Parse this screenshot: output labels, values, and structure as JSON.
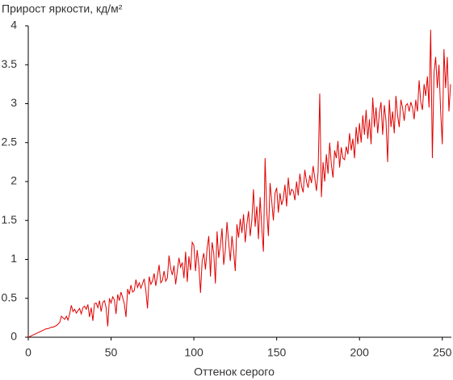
{
  "chart_data": {
    "type": "line",
    "title": "Прирост яркости, кд/м²",
    "x_label": "Оттенок серого",
    "xlim": [
      0,
      255
    ],
    "xticks": [
      0,
      50,
      100,
      150,
      200,
      250
    ],
    "ylim": [
      0,
      4
    ],
    "yticks": [
      0,
      0.5,
      1,
      1.5,
      2,
      2.5,
      3,
      3.5,
      4
    ],
    "grid": false,
    "series": [
      {
        "color": "#e00000",
        "x": [
          0,
          1,
          2,
          3,
          4,
          5,
          6,
          7,
          8,
          9,
          10,
          11,
          12,
          13,
          14,
          15,
          16,
          17,
          18,
          19,
          20,
          21,
          22,
          23,
          24,
          25,
          26,
          27,
          28,
          29,
          30,
          31,
          32,
          33,
          34,
          35,
          36,
          37,
          38,
          39,
          40,
          41,
          42,
          43,
          44,
          45,
          46,
          47,
          48,
          49,
          50,
          51,
          52,
          53,
          54,
          55,
          56,
          57,
          58,
          59,
          60,
          61,
          62,
          63,
          64,
          65,
          66,
          67,
          68,
          69,
          70,
          71,
          72,
          73,
          74,
          75,
          76,
          77,
          78,
          79,
          80,
          81,
          82,
          83,
          84,
          85,
          86,
          87,
          88,
          89,
          90,
          91,
          92,
          93,
          94,
          95,
          96,
          97,
          98,
          99,
          100,
          101,
          102,
          103,
          104,
          105,
          106,
          107,
          108,
          109,
          110,
          111,
          112,
          113,
          114,
          115,
          116,
          117,
          118,
          119,
          120,
          121,
          122,
          123,
          124,
          125,
          126,
          127,
          128,
          129,
          130,
          131,
          132,
          133,
          134,
          135,
          136,
          137,
          138,
          139,
          140,
          141,
          142,
          143,
          144,
          145,
          146,
          147,
          148,
          149,
          150,
          151,
          152,
          153,
          154,
          155,
          156,
          157,
          158,
          159,
          160,
          161,
          162,
          163,
          164,
          165,
          166,
          167,
          168,
          169,
          170,
          171,
          172,
          173,
          174,
          175,
          176,
          177,
          178,
          179,
          180,
          181,
          182,
          183,
          184,
          185,
          186,
          187,
          188,
          189,
          190,
          191,
          192,
          193,
          194,
          195,
          196,
          197,
          198,
          199,
          200,
          201,
          202,
          203,
          204,
          205,
          206,
          207,
          208,
          209,
          210,
          211,
          212,
          213,
          214,
          215,
          216,
          217,
          218,
          219,
          220,
          221,
          222,
          223,
          224,
          225,
          226,
          227,
          228,
          229,
          230,
          231,
          232,
          233,
          234,
          235,
          236,
          237,
          238,
          239,
          240,
          241,
          242,
          243,
          244,
          245,
          246,
          247,
          248,
          249,
          250,
          251,
          252,
          253,
          254,
          255
        ],
        "values": [
          0,
          0.01,
          0.02,
          0.03,
          0.04,
          0.05,
          0.06,
          0.07,
          0.08,
          0.09,
          0.1,
          0.11,
          0.11,
          0.12,
          0.13,
          0.13,
          0.14,
          0.15,
          0.17,
          0.19,
          0.27,
          0.25,
          0.23,
          0.27,
          0.22,
          0.3,
          0.41,
          0.33,
          0.36,
          0.31,
          0.34,
          0.37,
          0.3,
          0.38,
          0.4,
          0.36,
          0.42,
          0.26,
          0.38,
          0.21,
          0.43,
          0.44,
          0.38,
          0.47,
          0.33,
          0.45,
          0.47,
          0.38,
          0.14,
          0.5,
          0.44,
          0.52,
          0.48,
          0.3,
          0.55,
          0.47,
          0.58,
          0.51,
          0.43,
          0.26,
          0.62,
          0.55,
          0.67,
          0.58,
          0.6,
          0.74,
          0.64,
          0.7,
          0.63,
          0.69,
          0.75,
          0.6,
          0.37,
          0.78,
          0.68,
          0.72,
          0.82,
          0.66,
          0.79,
          0.93,
          0.7,
          0.73,
          0.85,
          0.72,
          0.76,
          1.05,
          0.88,
          0.8,
          0.92,
          0.68,
          0.85,
          1.02,
          0.9,
          0.96,
          0.76,
          1.1,
          0.71,
          1.04,
          0.86,
          1.22,
          1.18,
          0.85,
          1.12,
          0.92,
          0.57,
          0.98,
          1.08,
          0.87,
          1.14,
          1.3,
          0.78,
          1.22,
          1.08,
          0.69,
          1.36,
          1.02,
          1.18,
          1.4,
          0.93,
          1.12,
          1.48,
          1.22,
          0.98,
          1.3,
          1.1,
          0.85,
          1.45,
          1.28,
          1.52,
          1.34,
          1.58,
          1.22,
          1.45,
          1.62,
          1.3,
          1.5,
          1.9,
          1.42,
          1.68,
          1.26,
          1.8,
          1.4,
          1.1,
          2.3,
          1.62,
          1.3,
          1.98,
          1.75,
          1.5,
          1.85,
          1.92,
          1.6,
          1.85,
          1.7,
          1.78,
          1.96,
          1.68,
          2.05,
          1.82,
          1.9,
          1.88,
          1.76,
          2.0,
          1.82,
          2.1,
          1.94,
          1.86,
          2.15,
          2.0,
          1.92,
          2.08,
          1.98,
          2.2,
          2.05,
          1.88,
          2.12,
          3.13,
          1.8,
          2.25,
          2.0,
          2.35,
          2.1,
          2.5,
          2.22,
          2.05,
          2.4,
          2.3,
          2.52,
          2.18,
          2.44,
          2.3,
          2.28,
          2.45,
          2.35,
          2.62,
          2.4,
          2.55,
          2.3,
          2.7,
          2.48,
          2.75,
          2.5,
          2.85,
          2.6,
          2.92,
          2.55,
          2.8,
          2.48,
          3.08,
          2.7,
          2.95,
          2.62,
          2.88,
          3.02,
          2.6,
          2.98,
          2.78,
          2.25,
          3.05,
          2.7,
          2.9,
          2.62,
          3.1,
          2.85,
          2.7,
          3.05,
          2.95,
          2.78,
          2.98,
          3.0,
          2.9,
          3.02,
          2.95,
          2.8,
          3.05,
          2.9,
          3.3,
          3.02,
          2.92,
          3.25,
          3.1,
          3.35,
          2.95,
          3.95,
          2.3,
          3.4,
          3.6,
          3.2,
          3.5,
          2.9,
          2.48,
          3.7,
          3.2,
          3.6,
          2.9,
          3.25
        ]
      }
    ]
  }
}
